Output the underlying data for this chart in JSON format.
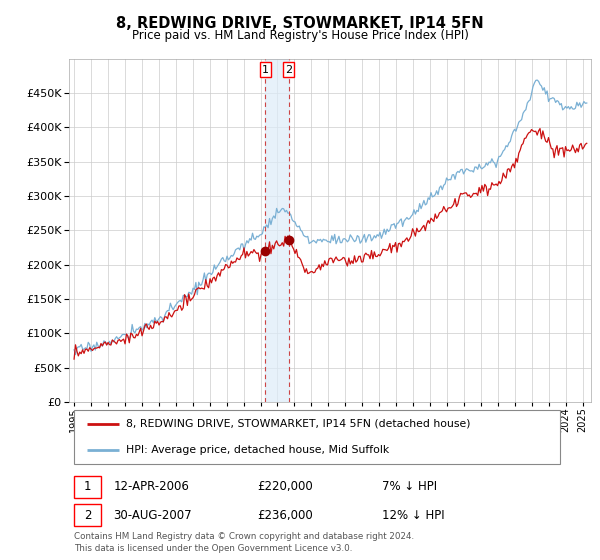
{
  "title": "8, REDWING DRIVE, STOWMARKET, IP14 5FN",
  "subtitle": "Price paid vs. HM Land Registry's House Price Index (HPI)",
  "hpi_color": "#7ab0d4",
  "price_color": "#cc1111",
  "marker_color": "#990000",
  "background_color": "#ffffff",
  "grid_color": "#cccccc",
  "ylim": [
    0,
    500000
  ],
  "yticks": [
    0,
    50000,
    100000,
    150000,
    200000,
    250000,
    300000,
    350000,
    400000,
    450000
  ],
  "legend_label_price": "8, REDWING DRIVE, STOWMARKET, IP14 5FN (detached house)",
  "legend_label_hpi": "HPI: Average price, detached house, Mid Suffolk",
  "transaction1_date": "12-APR-2006",
  "transaction1_price": 220000,
  "transaction1_note": "7% ↓ HPI",
  "transaction2_date": "30-AUG-2007",
  "transaction2_price": 236000,
  "transaction2_note": "12% ↓ HPI",
  "footnote": "Contains HM Land Registry data © Crown copyright and database right 2024.\nThis data is licensed under the Open Government Licence v3.0.",
  "vline1_x": 2006.27,
  "vline2_x": 2007.66,
  "marker1_x": 2006.27,
  "marker1_y": 220000,
  "marker2_x": 2007.66,
  "marker2_y": 236000,
  "xlim_left": 1994.7,
  "xlim_right": 2025.5
}
